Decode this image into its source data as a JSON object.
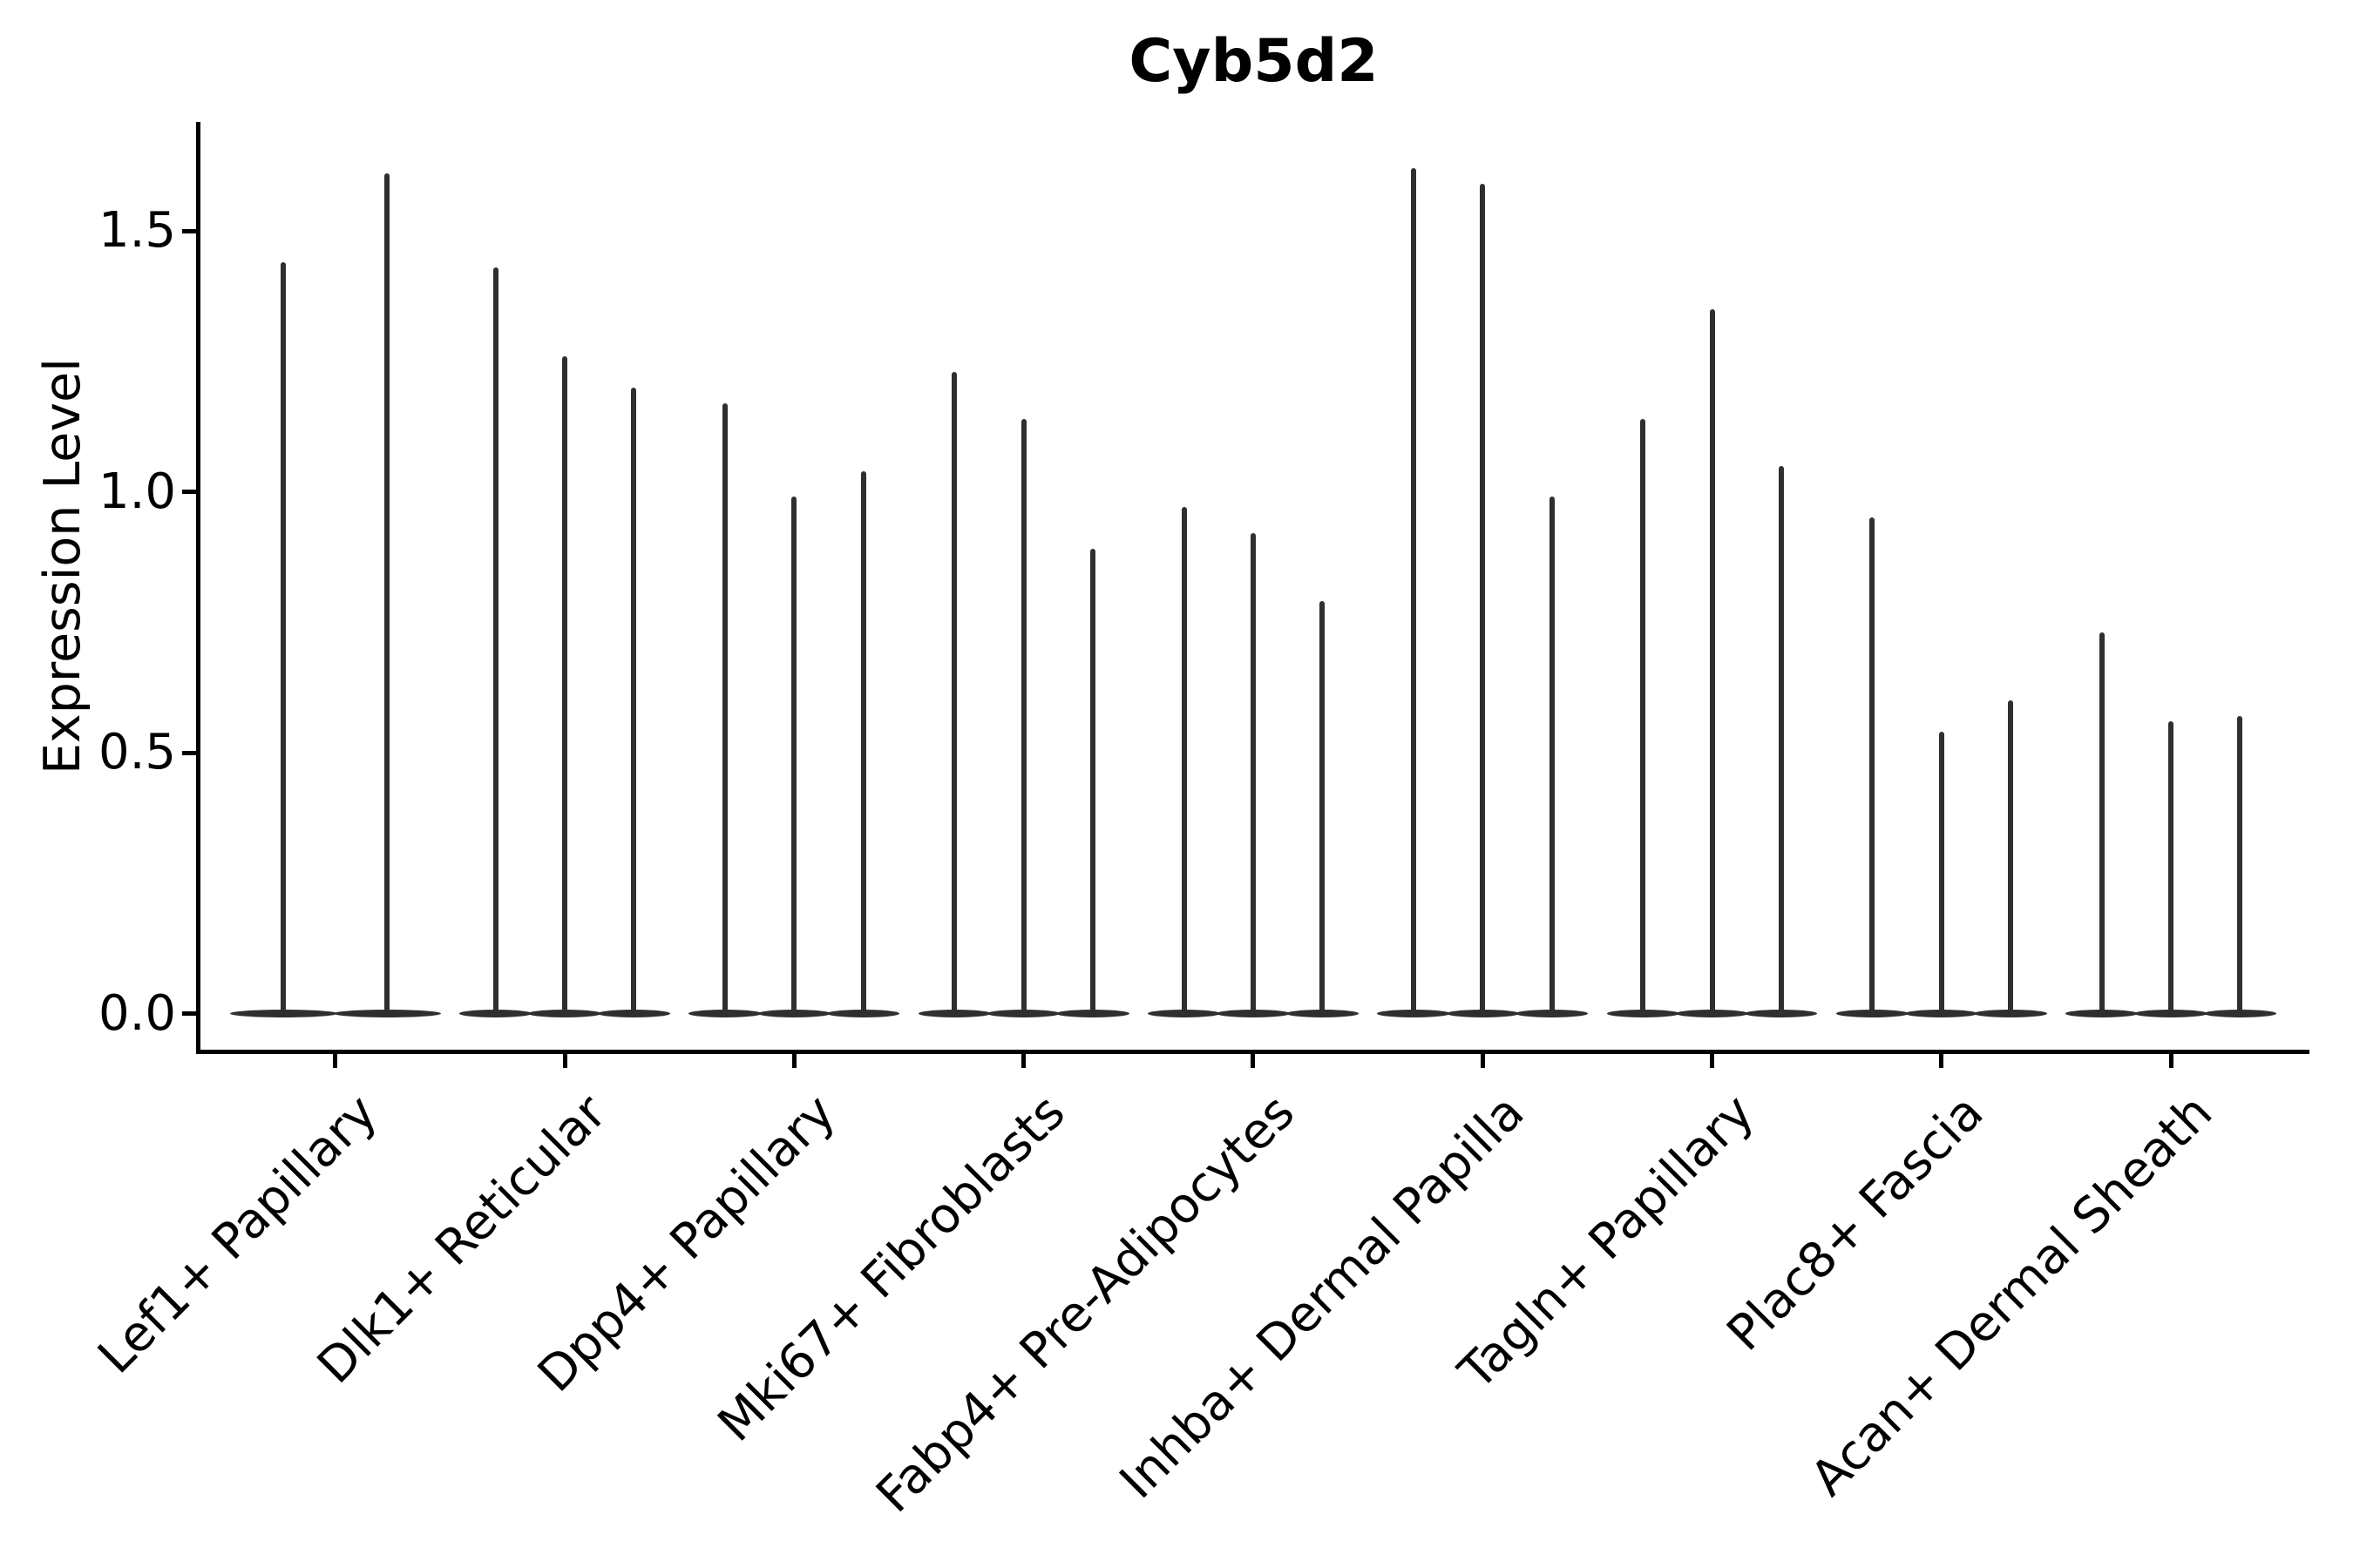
{
  "title": "Cyb5d2",
  "chart_data": {
    "type": "violin",
    "title": "Cyb5d2",
    "xlabel": "",
    "ylabel": "Expression Level",
    "ylim": [
      -0.07,
      1.72
    ],
    "yticks": [
      0.0,
      0.5,
      1.0,
      1.5
    ],
    "ytick_labels": [
      "0.0",
      "0.5",
      "1.0",
      "1.5"
    ],
    "grid": false,
    "legend": "none",
    "categories": [
      "Lef1+ Papillary",
      "Dlk1+ Reticular",
      "Dpp4+ Papillary",
      "Mki67+ Fibroblasts",
      "Fabp4+ Pre-Adipocytes",
      "Inhba+ Dermal Papilla",
      "Tagln+ Papillary",
      "Plac8+ Fascia",
      "Acan+ Dermal Sheath"
    ],
    "series_note": "Each category shows thin violin spikes rising from a dense flat mass at 0; values below are the maximum expression reached by each spike, left to right.",
    "series": [
      {
        "category": "Lef1+ Papillary",
        "spike_maxima": [
          1.44,
          1.61
        ]
      },
      {
        "category": "Dlk1+ Reticular",
        "spike_maxima": [
          1.43,
          1.26,
          1.2
        ]
      },
      {
        "category": "Dpp4+ Papillary",
        "spike_maxima": [
          1.17,
          0.99,
          1.04
        ]
      },
      {
        "category": "Mki67+ Fibroblasts",
        "spike_maxima": [
          1.23,
          1.14,
          0.89
        ]
      },
      {
        "category": "Fabp4+ Pre-Adipocytes",
        "spike_maxima": [
          0.97,
          0.92,
          0.79
        ]
      },
      {
        "category": "Inhba+ Dermal Papilla",
        "spike_maxima": [
          1.62,
          1.59,
          0.99
        ]
      },
      {
        "category": "Tagln+ Papillary",
        "spike_maxima": [
          1.14,
          1.35,
          1.05
        ]
      },
      {
        "category": "Plac8+ Fascia",
        "spike_maxima": [
          0.95,
          0.54,
          0.6
        ]
      },
      {
        "category": "Acan+ Dermal Sheath",
        "spike_maxima": [
          0.73,
          0.56,
          0.57
        ]
      }
    ],
    "colors": {
      "violin": "#2f2f2f",
      "axis": "#000000",
      "text": "#000000",
      "background": "#ffffff"
    }
  }
}
